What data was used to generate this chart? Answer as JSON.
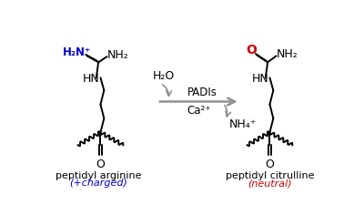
{
  "bg_color": "#ffffff",
  "figsize": [
    4.0,
    2.36
  ],
  "dpi": 100,
  "arrow_color": "#909090",
  "bond_color": "#000000",
  "blue_color": "#0000cc",
  "red_color": "#cc0000",
  "label_left": "peptidyl arginine",
  "label_left_sub": "(+charged)",
  "label_right": "peptidyl citrulline",
  "label_right_sub": "(neutral)",
  "text_PADIs": "PADIs",
  "text_H2O": "H₂O",
  "text_Ca2p": "Ca²⁺",
  "text_NH4p": "NH₄⁺"
}
